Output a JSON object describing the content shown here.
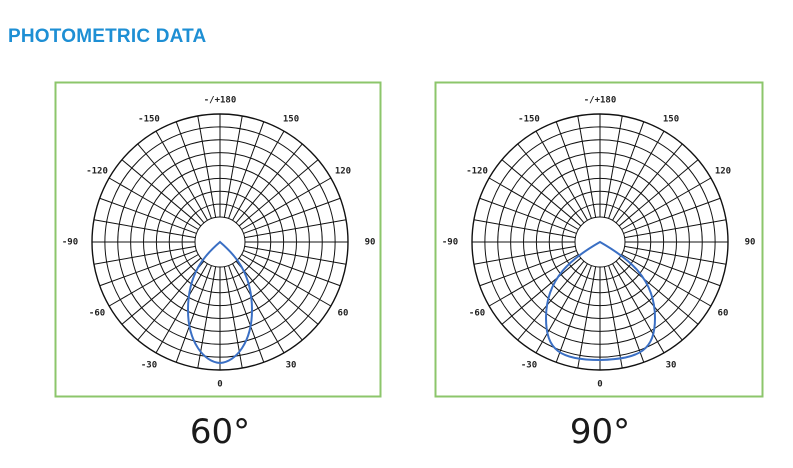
{
  "header": {
    "title": "PHOTOMETRIC DATA"
  },
  "panels": [
    {
      "angle_labels": [
        "-/+180",
        "-150",
        "150",
        "-120",
        "120",
        "-90",
        "90",
        "-60",
        "60",
        "-30",
        "30",
        "0"
      ],
      "caption": "60°"
    },
    {
      "angle_labels": [
        "-/+180",
        "-150",
        "150",
        "-120",
        "120",
        "-90",
        "90",
        "-60",
        "60",
        "-30",
        "30",
        "0"
      ],
      "caption": "90°"
    }
  ]
}
